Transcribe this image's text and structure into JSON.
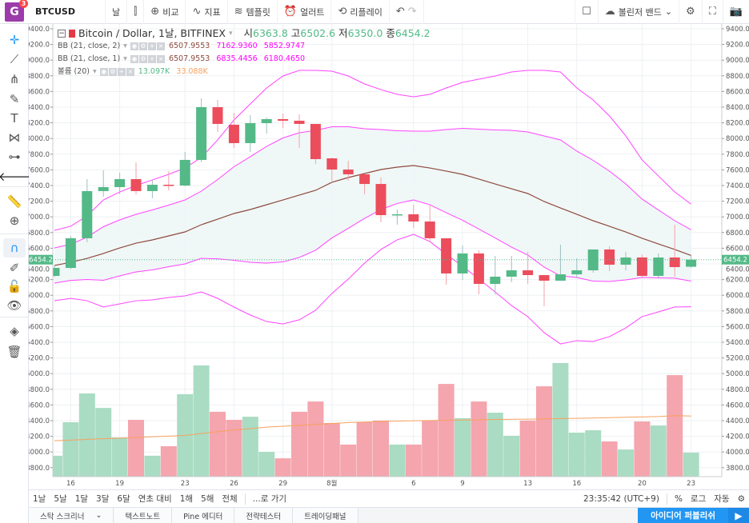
{
  "topbar": {
    "logo_letter": "G",
    "notif_count": "3",
    "symbol": "BTCUSD",
    "interval": "날",
    "compare": "비교",
    "indicators": "지표",
    "templates": "템플릿",
    "alert": "얼러트",
    "replay": "리플레이",
    "indicator_dropdown": "볼린저 밴드"
  },
  "legend": {
    "title": "Bitcoin / Dollar, 1날, BITFINEX",
    "o_label": "시",
    "o": "6363.8",
    "h_label": "고",
    "h": "6502.6",
    "l_label": "저",
    "l": "6350.0",
    "c_label": "종",
    "c": "6454.2",
    "bb2": {
      "name": "BB (21, close, 2)",
      "basis": "6507.9553",
      "upper": "7162.9360",
      "lower": "5852.9747"
    },
    "bb1": {
      "name": "BB (21, close, 1)",
      "basis": "6507.9553",
      "upper": "6835.4456",
      "lower": "6180.4650"
    },
    "vol": {
      "name": "볼륨 (20)",
      "value": "13.097K",
      "ma": "33.088K"
    }
  },
  "colors": {
    "up": "#53b987",
    "down": "#eb4d5c",
    "vol_up": "#a9dcc3",
    "vol_down": "#f4a5ad",
    "band": "#ff44ff",
    "basis": "#8d4b3e",
    "vol_ma": "#f8a15e",
    "fill": "#eef6f6",
    "accent": "#2196f3"
  },
  "chart_data": {
    "type": "candlestick",
    "current_price": "6454.2",
    "ylim": [
      3700,
      9500
    ],
    "y_ticks": [
      "9400.0",
      "9200.0",
      "9000.0",
      "8800.0",
      "8600.0",
      "8400.0",
      "8200.0",
      "8000.0",
      "7800.0",
      "7600.0",
      "7400.0",
      "7200.0",
      "7000.0",
      "6800.0",
      "6600.0",
      "6400.0",
      "6200.0",
      "6000.0",
      "5800.0",
      "5600.0",
      "5400.0",
      "5200.0",
      "5000.0",
      "4800.0",
      "4600.0",
      "4400.0",
      "4200.0",
      "4000.0",
      "3800.0"
    ],
    "x_ticks": [
      {
        "i": 1,
        "label": "16"
      },
      {
        "i": 4,
        "label": "19"
      },
      {
        "i": 8,
        "label": "23"
      },
      {
        "i": 11,
        "label": "26"
      },
      {
        "i": 14,
        "label": "29"
      },
      {
        "i": 17,
        "label": "8월"
      },
      {
        "i": 22,
        "label": "6"
      },
      {
        "i": 25,
        "label": "9"
      },
      {
        "i": 29,
        "label": "13"
      },
      {
        "i": 32,
        "label": "16"
      },
      {
        "i": 36,
        "label": "20"
      },
      {
        "i": 39,
        "label": "23"
      }
    ],
    "ohlc": [
      [
        6247,
        6380,
        6230,
        6349
      ],
      [
        6349,
        6757,
        6330,
        6727
      ],
      [
        6727,
        7482,
        6676,
        7329
      ],
      [
        7329,
        7594,
        7257,
        7380
      ],
      [
        7380,
        7563,
        7288,
        7482
      ],
      [
        7482,
        7696,
        7288,
        7329
      ],
      [
        7329,
        7471,
        7237,
        7410
      ],
      [
        7410,
        7584,
        7339,
        7400
      ],
      [
        7400,
        7829,
        7390,
        7727
      ],
      [
        7727,
        8512,
        7696,
        8400
      ],
      [
        8400,
        8492,
        8084,
        8186
      ],
      [
        8176,
        8329,
        7880,
        7941
      ],
      [
        7941,
        8298,
        7829,
        8196
      ],
      [
        8196,
        8267,
        8063,
        8247
      ],
      [
        8247,
        8318,
        8135,
        8227
      ],
      [
        8227,
        8308,
        7880,
        8186
      ],
      [
        8186,
        8186,
        7675,
        7737
      ],
      [
        7747,
        7757,
        7461,
        7604
      ],
      [
        7604,
        7716,
        7461,
        7543
      ],
      [
        7543,
        7543,
        7288,
        7420
      ],
      [
        7420,
        7502,
        6931,
        7022
      ],
      [
        7020,
        7094,
        6900,
        7033
      ],
      [
        7033,
        7155,
        6859,
        6941
      ],
      [
        6941,
        7145,
        6686,
        6727
      ],
      [
        6727,
        6727,
        6135,
        6278
      ],
      [
        6278,
        6635,
        6196,
        6533
      ],
      [
        6533,
        6573,
        6012,
        6145
      ],
      [
        6145,
        6502,
        6012,
        6237
      ],
      [
        6237,
        6502,
        6165,
        6318
      ],
      [
        6318,
        6553,
        6145,
        6257
      ],
      [
        6257,
        6257,
        5859,
        6186
      ],
      [
        6186,
        6645,
        6186,
        6267
      ],
      [
        6267,
        6471,
        6227,
        6318
      ],
      [
        6318,
        6584,
        6288,
        6584
      ],
      [
        6584,
        6624,
        6308,
        6390
      ],
      [
        6390,
        6553,
        6318,
        6482
      ],
      [
        6482,
        6522,
        6227,
        6247
      ],
      [
        6247,
        6533,
        6227,
        6482
      ],
      [
        6482,
        6900,
        6237,
        6359
      ],
      [
        6363.8,
        6502.6,
        6350.0,
        6454.2
      ]
    ],
    "bb_basis": [
      6380,
      6420,
      6471,
      6533,
      6604,
      6665,
      6706,
      6757,
      6808,
      6900,
      6971,
      7043,
      7094,
      7155,
      7216,
      7278,
      7339,
      7441,
      7502,
      7553,
      7604,
      7635,
      7655,
      7624,
      7584,
      7543,
      7482,
      7420,
      7359,
      7298,
      7196,
      7114,
      7033,
      6951,
      6880,
      6808,
      6727,
      6655,
      6584,
      6508
    ],
    "bb_upper2": [
      6829,
      6880,
      7012,
      7216,
      7318,
      7400,
      7471,
      7543,
      7624,
      7757,
      7982,
      8237,
      8441,
      8645,
      8798,
      8869,
      8869,
      8859,
      8798,
      8696,
      8624,
      8563,
      8533,
      8563,
      8645,
      8716,
      8757,
      8798,
      8849,
      8869,
      8869,
      8849,
      8645,
      8492,
      8288,
      8033,
      7727,
      7522,
      7318,
      7163
    ],
    "volume_k": [
      11.4,
      29.7,
      45.4,
      37.5,
      21.4,
      31.0,
      11.4,
      16.6,
      45.0,
      60.7,
      35.4,
      31.0,
      32.7,
      13.5,
      10.0,
      35.4,
      41.0,
      29.3,
      17.5,
      29.7,
      30.6,
      17.5,
      17.5,
      30.6,
      50.6,
      31.9,
      41.0,
      34.9,
      22.3,
      30.6,
      49.3,
      62.0,
      24.0,
      25.3,
      19.2,
      14.8,
      30.1,
      27.9,
      55.4,
      13.097
    ],
    "volume_ma_k": [
      19.6,
      19.9,
      20.3,
      20.7,
      21.0,
      21.4,
      21.8,
      22.1,
      22.5,
      23.5,
      24.5,
      25.5,
      26.2,
      27.0,
      27.5,
      28.0,
      28.5,
      29.0,
      29.5,
      29.8,
      30.1,
      30.3,
      30.5,
      30.6,
      30.8,
      30.9,
      31.0,
      31.2,
      31.3,
      31.4,
      31.5,
      31.7,
      31.8,
      32.0,
      32.2,
      32.4,
      32.6,
      32.8,
      33.3,
      33.088
    ]
  },
  "bottombar": {
    "ranges": [
      "1날",
      "5날",
      "1달",
      "3달",
      "6달",
      "연초 대비",
      "1해",
      "5해",
      "전체"
    ],
    "goto": "...로 가기",
    "time": "23:35:42 (UTC+9)",
    "percent": "%",
    "log": "로그",
    "auto": "자동"
  },
  "tabs": {
    "items": [
      "스탁 스크리너",
      "텍스트노트",
      "Pine 에디터",
      "전략테스터",
      "트레이딩패널"
    ],
    "publish": "아이디어 퍼블리쉬"
  }
}
